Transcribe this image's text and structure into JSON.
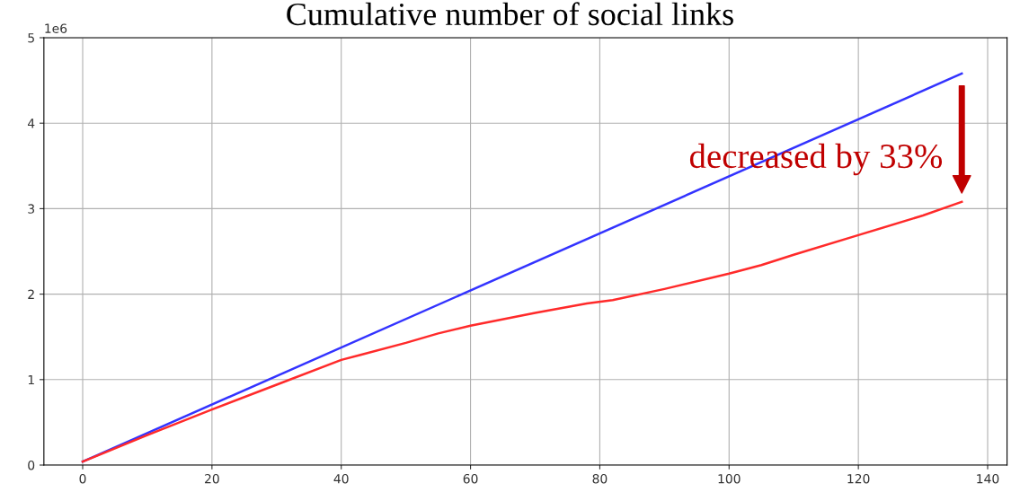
{
  "chart_data": {
    "type": "line",
    "title": "Cumulative number of social links",
    "x": [
      0,
      10,
      20,
      30,
      40,
      43,
      50,
      55,
      60,
      70,
      78,
      82,
      90,
      100,
      105,
      110,
      120,
      130,
      136
    ],
    "series": [
      {
        "color": "#3333ff",
        "x": [
          0,
          136
        ],
        "values": [
          0.04,
          4.58
        ]
      },
      {
        "color": "#ff2a2a",
        "values": [
          0.04,
          0.35,
          0.65,
          0.94,
          1.23,
          1.29,
          1.43,
          1.54,
          1.63,
          1.78,
          1.89,
          1.93,
          2.06,
          2.24,
          2.34,
          2.46,
          2.69,
          2.92,
          3.08
        ]
      }
    ],
    "xlim": [
      -6,
      143
    ],
    "xticks": [
      0,
      20,
      40,
      60,
      80,
      100,
      120,
      140
    ],
    "ylim": [
      0,
      5
    ],
    "yticks": [
      0,
      1,
      2,
      3,
      4,
      5
    ],
    "grid": true,
    "annotations": [
      "1e6",
      {
        "text": "decreased by 33%",
        "x": 136,
        "y": 3.08
      }
    ]
  }
}
